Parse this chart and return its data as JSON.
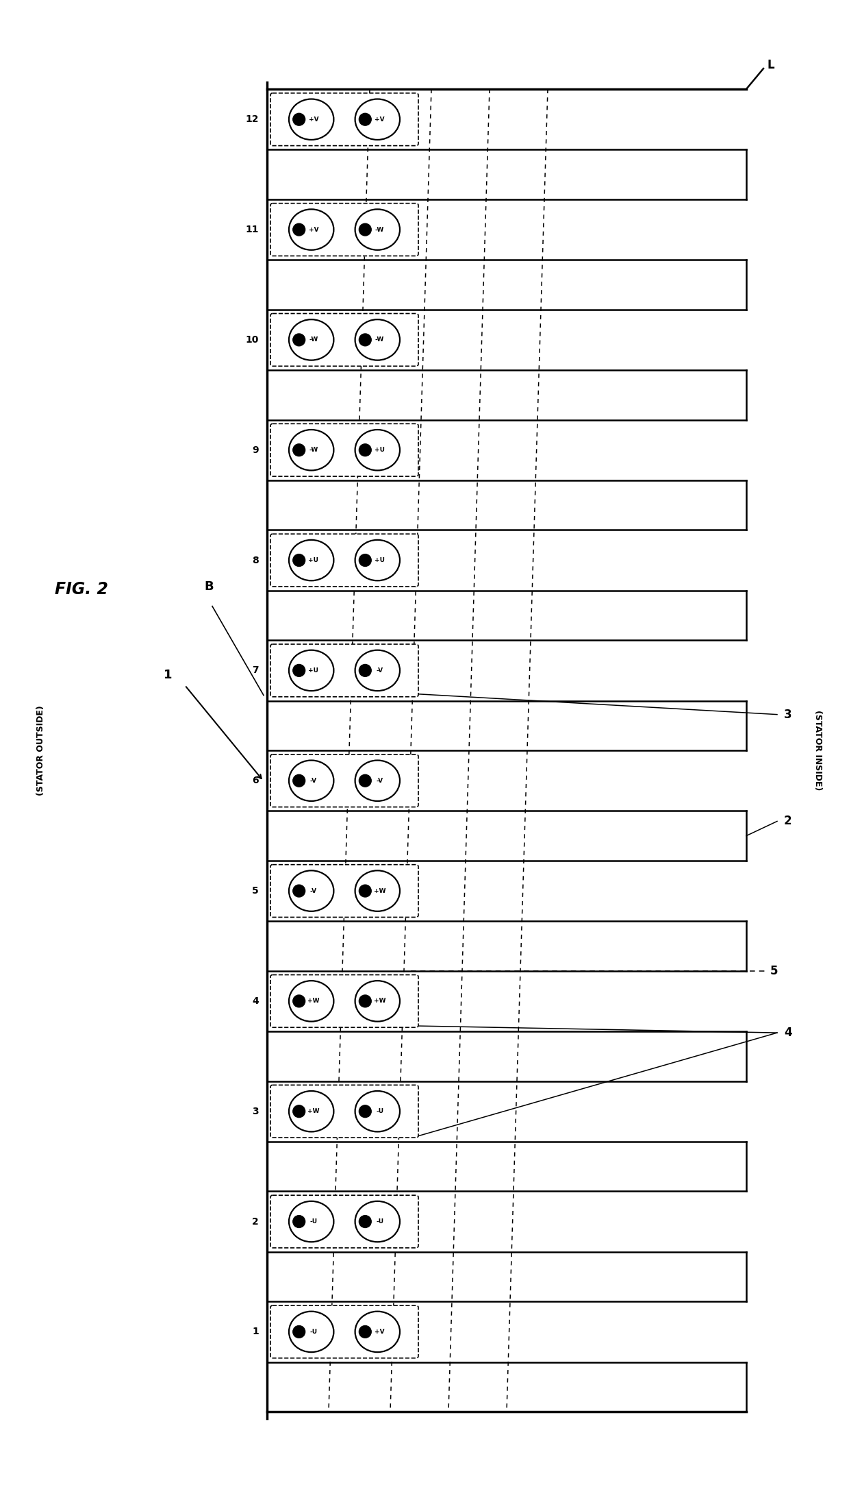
{
  "fig_label": "FIG. 2",
  "ref_1": "1",
  "label_B": "B",
  "label_L": "L",
  "stator_outside": "(STATOR OUTSIDE)",
  "stator_inside": "(STATOR INSIDE)",
  "num_slots": 12,
  "coil_data": [
    {
      "slot": 1,
      "top": "-U",
      "bot": "+V"
    },
    {
      "slot": 2,
      "top": "-U",
      "bot": "-U"
    },
    {
      "slot": 3,
      "top": "+W",
      "bot": "-U"
    },
    {
      "slot": 4,
      "top": "+W",
      "bot": "+W"
    },
    {
      "slot": 5,
      "top": "-V",
      "bot": "+W"
    },
    {
      "slot": 6,
      "top": "-V",
      "bot": "-V"
    },
    {
      "slot": 7,
      "top": "+U",
      "bot": "-V"
    },
    {
      "slot": 8,
      "top": "+U",
      "bot": "+U"
    },
    {
      "slot": 9,
      "top": "-W",
      "bot": "+U"
    },
    {
      "slot": 10,
      "top": "-W",
      "bot": "-W"
    },
    {
      "slot": 11,
      "top": "+V",
      "bot": "-W"
    },
    {
      "slot": 12,
      "top": "+V",
      "bot": "+V"
    }
  ],
  "label_2": "2",
  "label_3": "3",
  "label_4": "4",
  "label_5": "5",
  "bg_color": "#ffffff"
}
